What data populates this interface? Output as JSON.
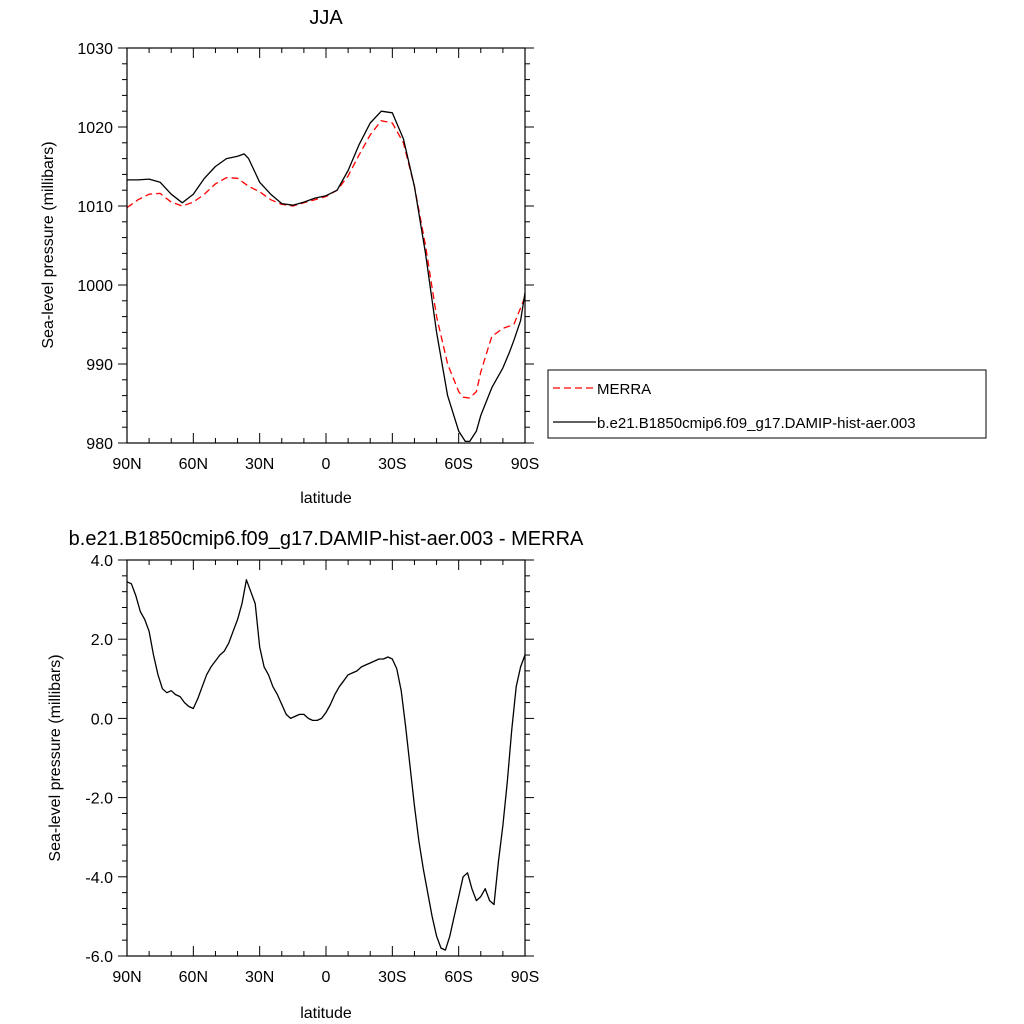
{
  "colors": {
    "merra": "#ff0000",
    "model": "#000000",
    "axis": "#000000"
  },
  "chart_data": [
    {
      "type": "line",
      "title": "JJA",
      "xlabel": "latitude",
      "ylabel": "Sea-level pressure (millibars)",
      "xlim": [
        -90,
        90
      ],
      "ylim": [
        980,
        1030
      ],
      "xticks": [
        -90,
        -60,
        -30,
        0,
        30,
        60,
        90
      ],
      "xtick_labels": [
        "90N",
        "60N",
        "30N",
        "0",
        "30S",
        "60S",
        "90S"
      ],
      "yticks": [
        980,
        990,
        1000,
        1010,
        1020,
        1030
      ],
      "ytick_labels": [
        "980",
        "990",
        "1000",
        "1010",
        "1020",
        "1030"
      ],
      "legend_placement": "right",
      "series": [
        {
          "name": "MERRA",
          "style": "dashed",
          "color": "#ff0000",
          "x": [
            -90,
            -85,
            -80,
            -75,
            -70,
            -65,
            -60,
            -55,
            -50,
            -45,
            -40,
            -35,
            -30,
            -25,
            -20,
            -15,
            -10,
            -5,
            0,
            5,
            10,
            15,
            20,
            25,
            30,
            35,
            40,
            45,
            50,
            55,
            60,
            62,
            65,
            68,
            70,
            75,
            80,
            85,
            90
          ],
          "y": [
            1009.8,
            1010.8,
            1011.5,
            1011.6,
            1010.5,
            1010.0,
            1010.5,
            1011.5,
            1012.8,
            1013.6,
            1013.5,
            1012.5,
            1011.8,
            1010.8,
            1010.2,
            1010.0,
            1010.4,
            1010.8,
            1011.2,
            1012.0,
            1013.8,
            1016.5,
            1019.0,
            1020.8,
            1020.5,
            1018.0,
            1012.5,
            1005.0,
            996.0,
            990.0,
            986.5,
            985.8,
            985.7,
            986.5,
            989.0,
            993.5,
            994.5,
            995.0,
            998.5
          ]
        },
        {
          "name": "b.e21.B1850cmip6.f09_g17.DAMIP-hist-aer.003",
          "style": "solid",
          "color": "#000000",
          "x": [
            -90,
            -85,
            -80,
            -75,
            -70,
            -65,
            -60,
            -55,
            -50,
            -45,
            -40,
            -37,
            -35,
            -30,
            -25,
            -20,
            -15,
            -10,
            -5,
            0,
            5,
            10,
            15,
            20,
            25,
            30,
            35,
            40,
            45,
            50,
            55,
            60,
            63,
            65,
            68,
            70,
            75,
            80,
            83,
            85,
            88,
            90
          ],
          "y": [
            1013.3,
            1013.3,
            1013.4,
            1013.0,
            1011.5,
            1010.4,
            1011.5,
            1013.5,
            1015.0,
            1016.0,
            1016.3,
            1016.6,
            1016.0,
            1013.0,
            1011.5,
            1010.3,
            1010.1,
            1010.5,
            1011.0,
            1011.3,
            1012.0,
            1014.5,
            1017.8,
            1020.5,
            1022.0,
            1021.8,
            1018.5,
            1012.5,
            1004.0,
            994.0,
            986.0,
            981.5,
            980.2,
            980.2,
            981.5,
            983.5,
            987.0,
            989.5,
            991.5,
            993.0,
            995.5,
            999.0
          ]
        }
      ]
    },
    {
      "type": "line",
      "title": "b.e21.B1850cmip6.f09_g17.DAMIP-hist-aer.003 - MERRA",
      "xlabel": "latitude",
      "ylabel": "Sea-level pressure (millibars)",
      "xlim": [
        -90,
        90
      ],
      "ylim": [
        -6,
        4
      ],
      "xticks": [
        -90,
        -60,
        -30,
        0,
        30,
        60,
        90
      ],
      "xtick_labels": [
        "90N",
        "60N",
        "30N",
        "0",
        "30S",
        "60S",
        "90S"
      ],
      "yticks": [
        -6,
        -4,
        -2,
        0,
        2,
        4
      ],
      "ytick_labels": [
        "-6.0",
        "-4.0",
        "-2.0",
        "0.0",
        "2.0",
        "4.0"
      ],
      "series": [
        {
          "style": "solid",
          "color": "#000000",
          "x": [
            -90,
            -88,
            -86,
            -84,
            -82,
            -80,
            -78,
            -76,
            -74,
            -72,
            -70,
            -68,
            -66,
            -64,
            -62,
            -60,
            -58,
            -56,
            -54,
            -52,
            -50,
            -48,
            -46,
            -44,
            -42,
            -40,
            -38,
            -36,
            -34,
            -32,
            -30,
            -28,
            -26,
            -24,
            -22,
            -20,
            -18,
            -16,
            -14,
            -12,
            -10,
            -8,
            -6,
            -4,
            -2,
            0,
            2,
            4,
            6,
            8,
            10,
            12,
            14,
            16,
            18,
            20,
            22,
            24,
            26,
            28,
            30,
            32,
            34,
            36,
            38,
            40,
            42,
            44,
            46,
            48,
            50,
            52,
            54,
            56,
            58,
            60,
            62,
            64,
            66,
            68,
            70,
            72,
            74,
            76,
            78,
            80,
            82,
            84,
            86,
            88,
            90
          ],
          "y": [
            3.45,
            3.4,
            3.1,
            2.7,
            2.5,
            2.2,
            1.6,
            1.1,
            0.75,
            0.65,
            0.7,
            0.6,
            0.55,
            0.4,
            0.3,
            0.25,
            0.5,
            0.8,
            1.1,
            1.3,
            1.45,
            1.6,
            1.7,
            1.9,
            2.2,
            2.5,
            2.9,
            3.5,
            3.2,
            2.9,
            1.8,
            1.3,
            1.1,
            0.8,
            0.6,
            0.35,
            0.1,
            0.0,
            0.05,
            0.1,
            0.1,
            0.0,
            -0.05,
            -0.05,
            0.0,
            0.15,
            0.35,
            0.6,
            0.8,
            0.95,
            1.1,
            1.15,
            1.2,
            1.3,
            1.35,
            1.4,
            1.45,
            1.5,
            1.5,
            1.55,
            1.5,
            1.25,
            0.7,
            -0.2,
            -1.2,
            -2.2,
            -3.1,
            -3.8,
            -4.4,
            -5.0,
            -5.5,
            -5.8,
            -5.85,
            -5.5,
            -5.0,
            -4.5,
            -4.0,
            -3.9,
            -4.3,
            -4.6,
            -4.5,
            -4.3,
            -4.6,
            -4.7,
            -3.6,
            -2.7,
            -1.6,
            -0.3,
            0.8,
            1.3,
            1.6
          ]
        }
      ]
    }
  ]
}
